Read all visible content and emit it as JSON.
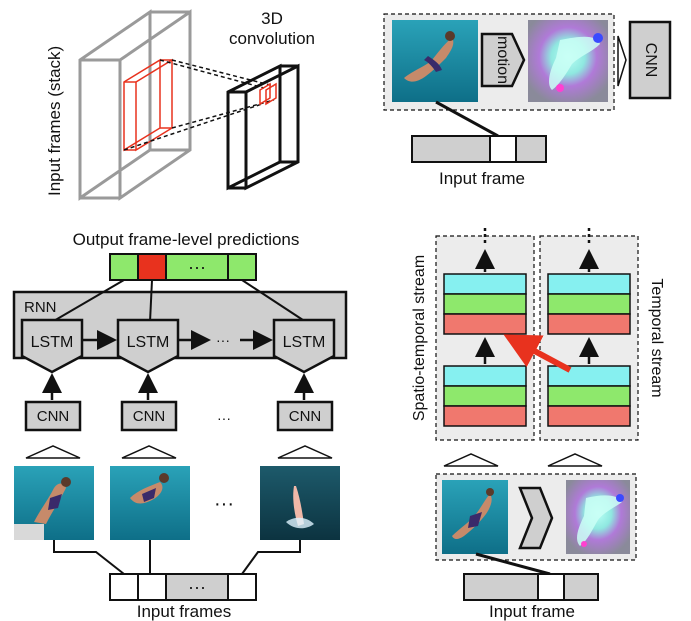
{
  "panel_3d": {
    "input_label": "Input frames (stack)",
    "conv_label_line1": "3D",
    "conv_label_line2": "convolution"
  },
  "panel_two_stream_top": {
    "motion_label": "motion",
    "cnn_label": "CNN",
    "input_label": "Input frame"
  },
  "panel_lstm": {
    "output_label": "Output frame-level predictions",
    "rnn_label": "RNN",
    "lstm_labels": [
      "LSTM",
      "LSTM",
      "LSTM"
    ],
    "lstm_dots": "···",
    "cnn_labels": [
      "CNN",
      "CNN",
      "CNN"
    ],
    "cnn_dots": "···",
    "frame_dots": "···",
    "output_dots": "···",
    "input_dots": "···",
    "input_label": "Input frames"
  },
  "panel_fusion": {
    "spatial_label": "Spatio-temporal stream",
    "temporal_label": "Temporal stream",
    "input_label": "Input frame"
  },
  "colors": {
    "red": "#e8321e",
    "green": "#8ee86c",
    "cyan": "#86f0f0",
    "salmon": "#f0786e",
    "box_gray": "#cfcfcf",
    "panel_gray": "#e8e8e8"
  }
}
